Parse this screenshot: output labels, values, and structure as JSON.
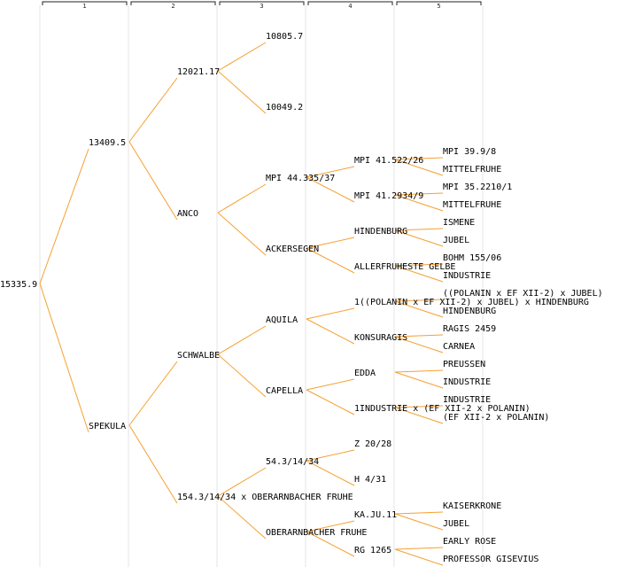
{
  "levels": [
    "1",
    "2",
    "3",
    "4",
    "5"
  ],
  "colors": {
    "edge": "#f5a030",
    "text": "#000000",
    "grid": "#e6e6e6"
  },
  "tree": {
    "label": "15335.9",
    "children": [
      {
        "label": "13409.5",
        "children": [
          {
            "label": "12021.17",
            "children": [
              {
                "label": "10805.7"
              },
              {
                "label": "10049.2"
              }
            ]
          },
          {
            "label": "ANCO",
            "children": [
              {
                "label": "MPI 44.335/37",
                "children": [
                  {
                    "label": "MPI 41.522/26",
                    "children": [
                      {
                        "label": "MPI 39.9/8"
                      },
                      {
                        "label": "MITTELFRUHE"
                      }
                    ]
                  },
                  {
                    "label": "MPI 41.2934/9",
                    "children": [
                      {
                        "label": "MPI 35.2210/1"
                      },
                      {
                        "label": "MITTELFRUHE"
                      }
                    ]
                  }
                ]
              },
              {
                "label": "ACKERSEGEN",
                "children": [
                  {
                    "label": "HINDENBURG",
                    "children": [
                      {
                        "label": "ISMENE"
                      },
                      {
                        "label": "JUBEL"
                      }
                    ]
                  },
                  {
                    "label": "ALLERFRUHESTE GELBE",
                    "children": [
                      {
                        "label": "BOHM 155/06"
                      },
                      {
                        "label": "INDUSTRIE"
                      }
                    ]
                  }
                ]
              }
            ]
          }
        ]
      },
      {
        "label": "SPEKULA",
        "children": [
          {
            "label": "SCHWALBE",
            "children": [
              {
                "label": "AQUILA",
                "children": [
                  {
                    "label": "1((POLANIN x EF XII-2) x JUBEL) x HINDENBURG",
                    "children": [
                      {
                        "label": "((POLANIN x EF XII-2) x JUBEL)"
                      },
                      {
                        "label": "HINDENBURG"
                      }
                    ]
                  },
                  {
                    "label": "KONSURAGIS",
                    "children": [
                      {
                        "label": "RAGIS 2459"
                      },
                      {
                        "label": "CARNEA"
                      }
                    ]
                  }
                ]
              },
              {
                "label": "CAPELLA",
                "children": [
                  {
                    "label": "EDDA",
                    "children": [
                      {
                        "label": "PREUSSEN"
                      },
                      {
                        "label": "INDUSTRIE"
                      }
                    ]
                  },
                  {
                    "label": "1INDUSTRIE x (EF XII-2 x POLANIN)",
                    "children": [
                      {
                        "label": "INDUSTRIE"
                      },
                      {
                        "label": "(EF XII-2 x POLANIN)"
                      }
                    ]
                  }
                ]
              }
            ]
          },
          {
            "label": "154.3/14/34 x OBERARNBACHER FRUHE",
            "children": [
              {
                "label": "54.3/14/34",
                "children": [
                  {
                    "label": "Z 20/28"
                  },
                  {
                    "label": "H 4/31"
                  }
                ]
              },
              {
                "label": "OBERARNBACHER FRUHE",
                "children": [
                  {
                    "label": "KA.JU.11",
                    "children": [
                      {
                        "label": "KAISERKRONE"
                      },
                      {
                        "label": "JUBEL"
                      }
                    ]
                  },
                  {
                    "label": "RG 1265",
                    "children": [
                      {
                        "label": "EARLY ROSE"
                      },
                      {
                        "label": "PROFESSOR GISEVIUS"
                      }
                    ]
                  }
                ]
              }
            ]
          }
        ]
      }
    ]
  }
}
